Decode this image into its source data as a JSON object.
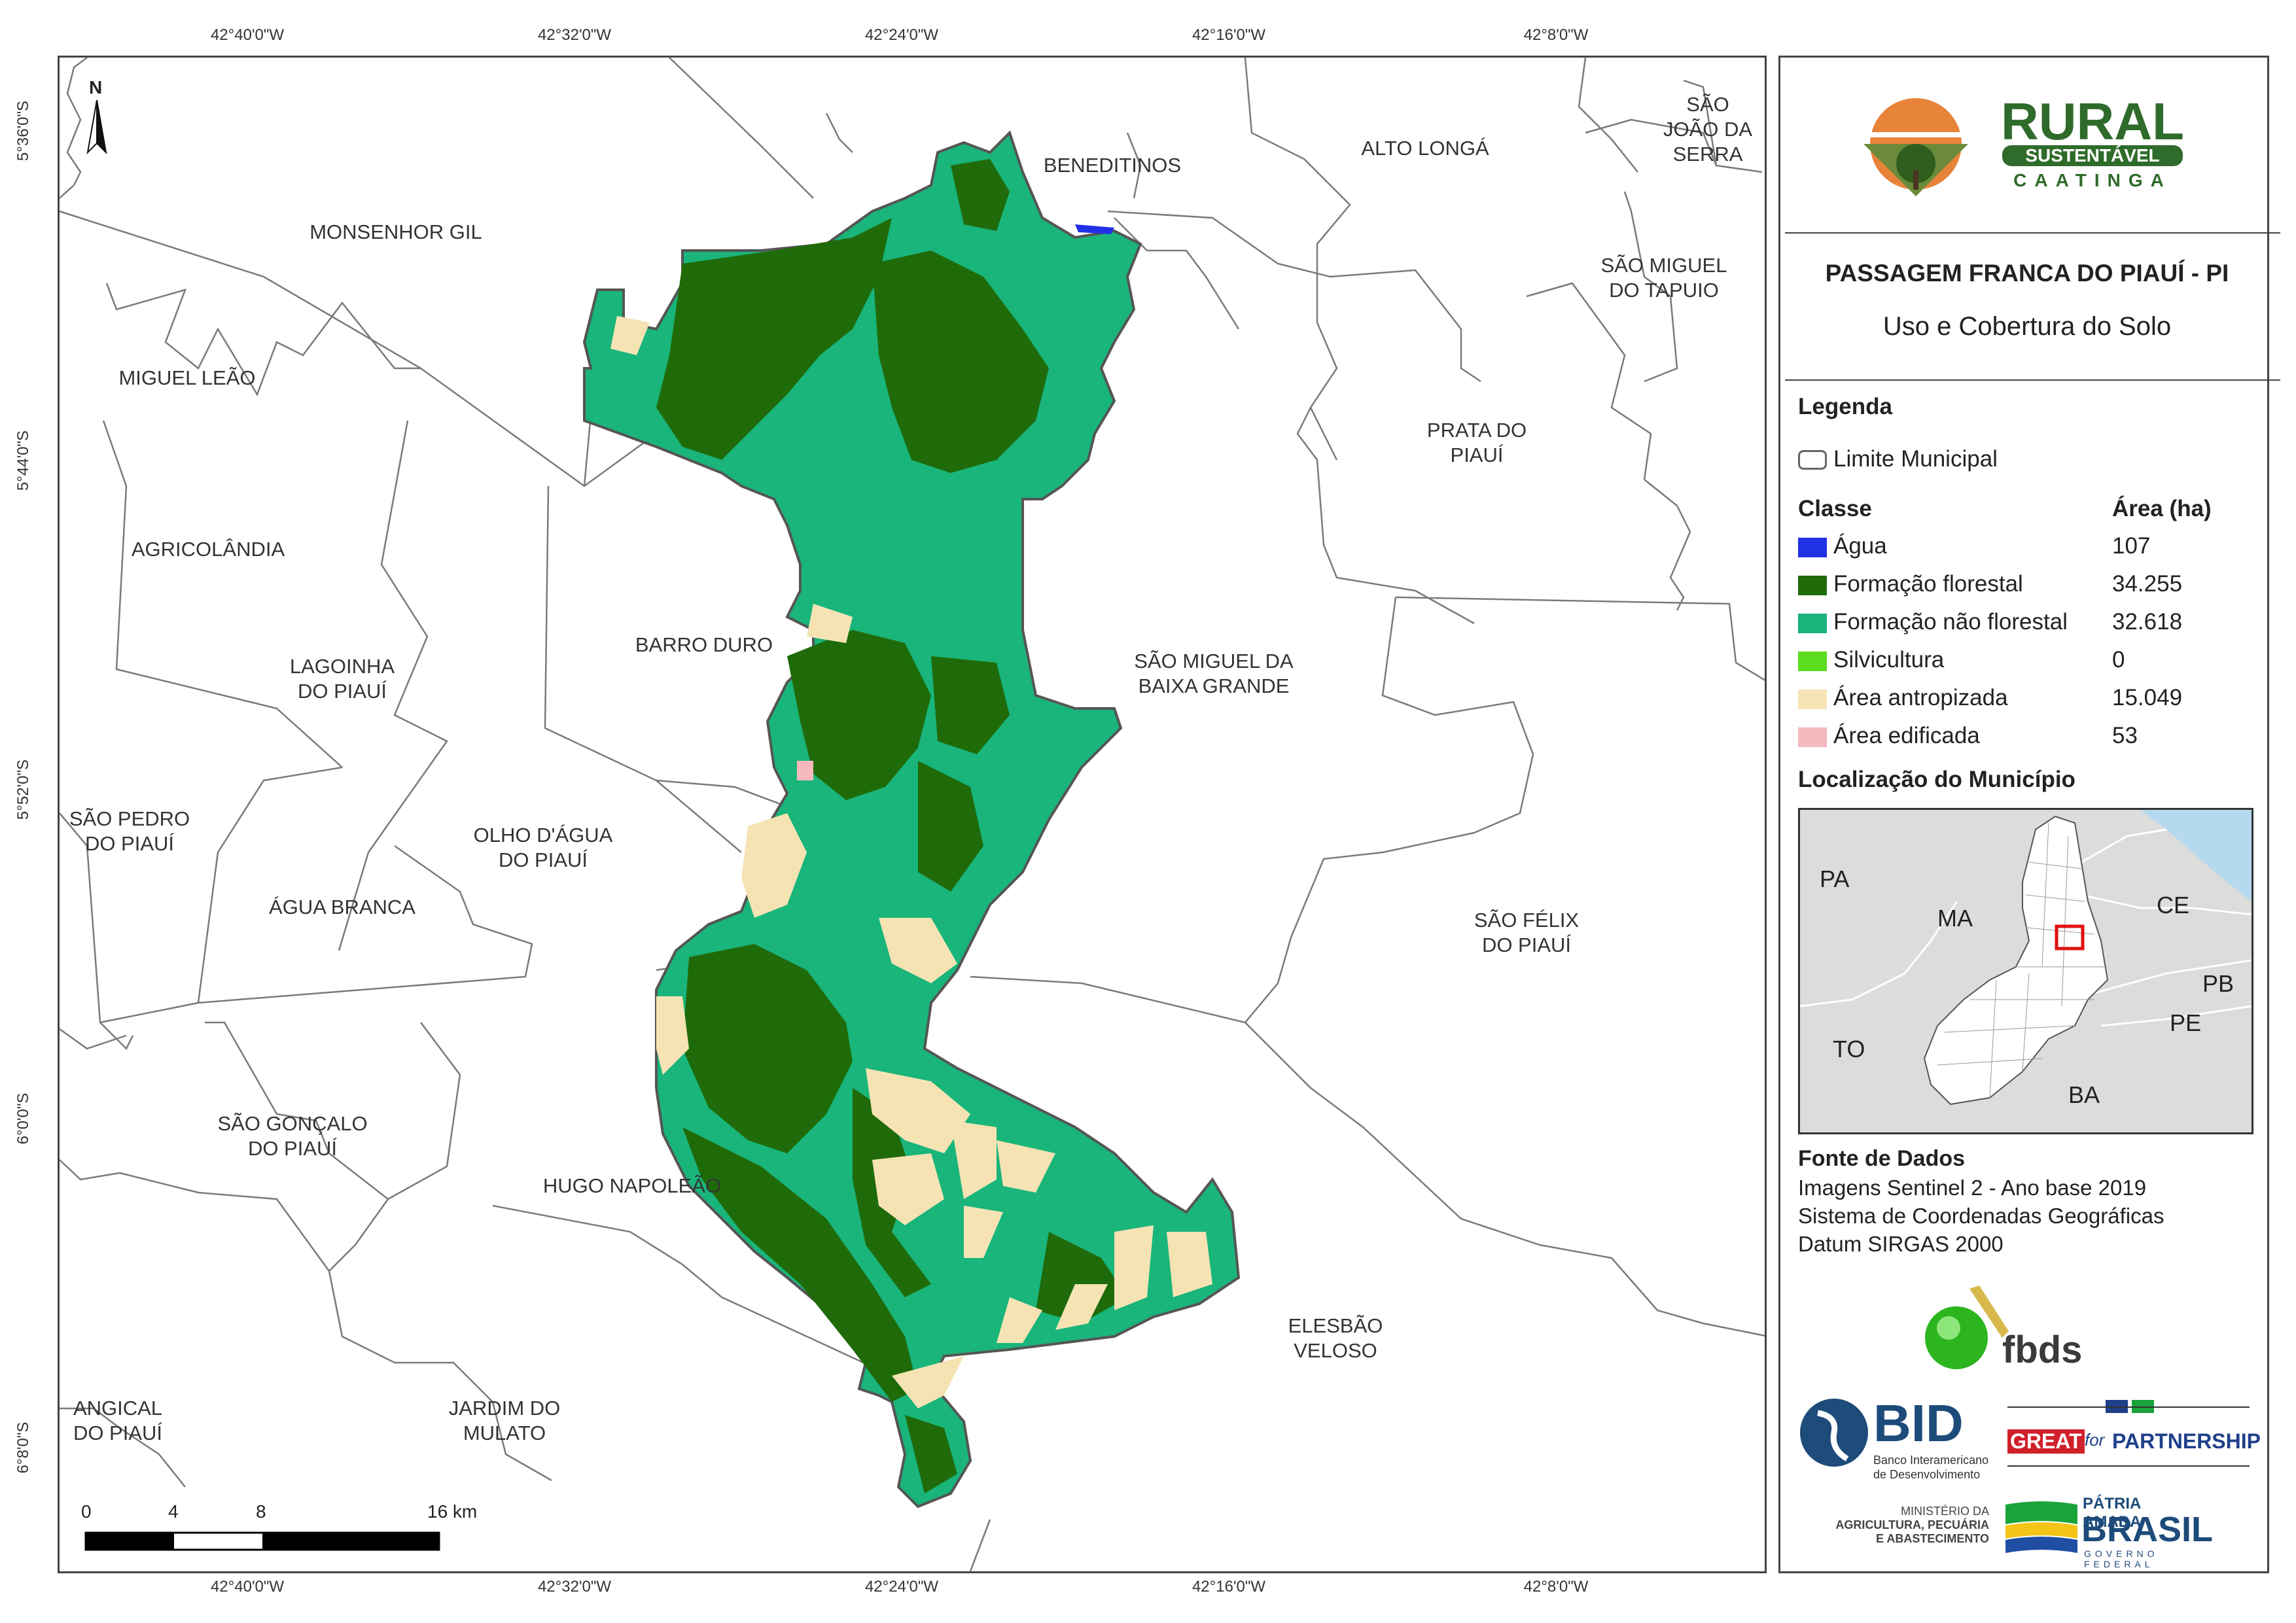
{
  "coordinates": {
    "lon_labels": [
      "42°40'0\"W",
      "42°32'0\"W",
      "42°24'0\"W",
      "42°16'0\"W",
      "42°8'0\"W"
    ],
    "lat_labels": [
      "5°36'0\"S",
      "5°44'0\"S",
      "5°52'0\"S",
      "6°0'0\"S",
      "6°8'0\"S"
    ]
  },
  "map": {
    "north_label": "N",
    "municipalities": [
      "MONSENHOR GIL",
      "BENEDITINOS",
      "ALTO LONGÁ",
      "SÃO\nJOÃO DA\nSERRA",
      "SÃO MIGUEL\nDO TAPUIO",
      "MIGUEL LEÃO",
      "AGRICOLÂNDIA",
      "PRATA DO\nPIAUÍ",
      "BARRO DURO",
      "LAGOINHA\nDO PIAUÍ",
      "SÃO MIGUEL DA\nBAIXA GRANDE",
      "SÃO PEDRO\nDO PIAUÍ",
      "OLHO D'ÁGUA\nDO PIAUÍ",
      "ÁGUA BRANCA",
      "SÃO FÉLIX\nDO PIAUÍ",
      "SÃO GONÇALO\nDO PIAUÍ",
      "HUGO NAPOLEÃO",
      "ELESBÃO\nVELOSO",
      "ANGICAL\nDO PIAUÍ",
      "JARDIM DO\nMULATO"
    ],
    "scale_bar": {
      "labels": [
        "0",
        "4",
        "8",
        "16 km"
      ]
    }
  },
  "panel": {
    "logo_title": "RURAL",
    "logo_sub1": "SUSTENTÁVEL",
    "logo_sub2": "CAATINGA",
    "title": "PASSAGEM FRANCA DO PIAUÍ - PI",
    "subtitle": "Uso e Cobertura do Solo",
    "legend_heading": "Legenda",
    "limit_label": "Limite Municipal",
    "class_header": "Classe",
    "area_header": "Área (ha)",
    "classes": [
      {
        "label": "Água",
        "area": "107",
        "color": "#2131e6"
      },
      {
        "label": "Formação florestal",
        "area": "34.255",
        "color": "#1f6b0a"
      },
      {
        "label": "Formação não florestal",
        "area": "32.618",
        "color": "#19b57a"
      },
      {
        "label": "Silvicultura",
        "area": "0",
        "color": "#5bdc1e"
      },
      {
        "label": "Área antropizada",
        "area": "15.049",
        "color": "#f6e3b4"
      },
      {
        "label": "Área edificada",
        "area": "53",
        "color": "#f5b9be"
      }
    ],
    "location_heading": "Localização do Município",
    "location_states": [
      "PA",
      "MA",
      "CE",
      "PB",
      "PE",
      "TO",
      "BA"
    ],
    "sources_heading": "Fonte de Dados",
    "sources": [
      "Imagens Sentinel 2 - Ano base 2019",
      "Sistema de Coordenadas Geográficas",
      "Datum SIRGAS 2000"
    ],
    "logos": {
      "fbds": "fbds",
      "bid": "BID",
      "bid_sub1": "Banco Interamericano",
      "bid_sub2": "de Desenvolvimento",
      "great": "GREAT",
      "great_for": "for",
      "partnership": "PARTNERSHIP",
      "ministerio1": "MINISTÉRIO DA",
      "ministerio2": "AGRICULTURA, PECUÁRIA",
      "ministerio3": "E ABASTECIMENTO",
      "patria": "PÁTRIA AMADA",
      "brasil": "BRASIL",
      "governo": "GOVERNO FEDERAL"
    }
  }
}
